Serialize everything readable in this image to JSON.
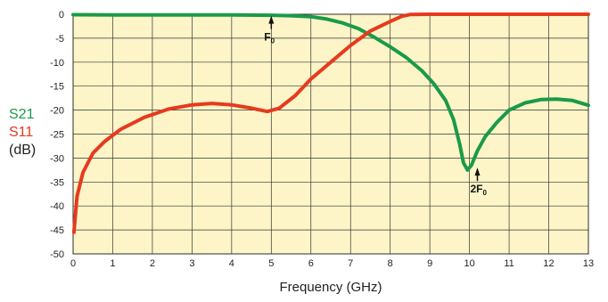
{
  "chart_data": {
    "type": "line",
    "xlabel": "Frequency (GHz)",
    "xlim": [
      0,
      13
    ],
    "ylim": [
      -50,
      0
    ],
    "x_ticks": [
      "0",
      "1",
      "2",
      "3",
      "4",
      "5",
      "6",
      "7",
      "8",
      "9",
      "10",
      "11",
      "12",
      "13"
    ],
    "y_ticks": [
      "0",
      "-5",
      "-10",
      "-15",
      "-20",
      "-25",
      "-30",
      "-35",
      "-40",
      "-45",
      "-50"
    ],
    "grid": true,
    "plot_background": "#fdf5c7",
    "ylabel_lines": [
      {
        "text": "S21",
        "color": "#1a9a4a"
      },
      {
        "text": "S11",
        "color": "#e63a1e"
      },
      {
        "text": "(dB)",
        "color": "#222222"
      }
    ],
    "series": [
      {
        "name": "S21",
        "color": "#1a9a4a",
        "points": [
          [
            0.0,
            -0.1
          ],
          [
            1.0,
            -0.15
          ],
          [
            2.0,
            -0.15
          ],
          [
            3.0,
            -0.15
          ],
          [
            4.0,
            -0.15
          ],
          [
            5.0,
            -0.2
          ],
          [
            5.5,
            -0.3
          ],
          [
            6.0,
            -0.5
          ],
          [
            6.4,
            -1.0
          ],
          [
            6.8,
            -1.8
          ],
          [
            7.2,
            -3.0
          ],
          [
            7.6,
            -4.8
          ],
          [
            8.0,
            -6.8
          ],
          [
            8.4,
            -9.0
          ],
          [
            8.8,
            -11.8
          ],
          [
            9.1,
            -14.5
          ],
          [
            9.4,
            -18.0
          ],
          [
            9.6,
            -22.0
          ],
          [
            9.75,
            -27.0
          ],
          [
            9.85,
            -31.0
          ],
          [
            9.95,
            -32.5
          ],
          [
            10.05,
            -31.5
          ],
          [
            10.2,
            -28.5
          ],
          [
            10.4,
            -25.5
          ],
          [
            10.7,
            -22.5
          ],
          [
            11.0,
            -20.0
          ],
          [
            11.4,
            -18.5
          ],
          [
            11.8,
            -17.8
          ],
          [
            12.2,
            -17.7
          ],
          [
            12.6,
            -18.0
          ],
          [
            13.0,
            -19.0
          ]
        ]
      },
      {
        "name": "S11",
        "color": "#e63a1e",
        "points": [
          [
            0.02,
            -45.5
          ],
          [
            0.1,
            -38.0
          ],
          [
            0.25,
            -33.0
          ],
          [
            0.5,
            -29.0
          ],
          [
            0.8,
            -26.5
          ],
          [
            1.2,
            -24.0
          ],
          [
            1.8,
            -21.5
          ],
          [
            2.4,
            -19.8
          ],
          [
            3.0,
            -18.9
          ],
          [
            3.5,
            -18.6
          ],
          [
            4.0,
            -18.9
          ],
          [
            4.5,
            -19.6
          ],
          [
            4.9,
            -20.3
          ],
          [
            5.2,
            -19.6
          ],
          [
            5.6,
            -17.0
          ],
          [
            6.0,
            -13.5
          ],
          [
            6.5,
            -10.0
          ],
          [
            7.0,
            -6.5
          ],
          [
            7.5,
            -3.5
          ],
          [
            8.0,
            -1.5
          ],
          [
            8.3,
            -0.4
          ],
          [
            8.5,
            -0.05
          ],
          [
            9.0,
            0.0
          ],
          [
            10.0,
            0.0
          ],
          [
            11.0,
            0.0
          ],
          [
            12.0,
            0.0
          ],
          [
            13.0,
            0.0
          ]
        ]
      }
    ],
    "annotations": [
      {
        "text": "F",
        "subscript": "0",
        "x": 5.0,
        "y": -0.3,
        "placement": "below"
      },
      {
        "text": "2F",
        "subscript": "0",
        "x": 10.2,
        "y": -32.0,
        "placement": "below"
      }
    ]
  }
}
